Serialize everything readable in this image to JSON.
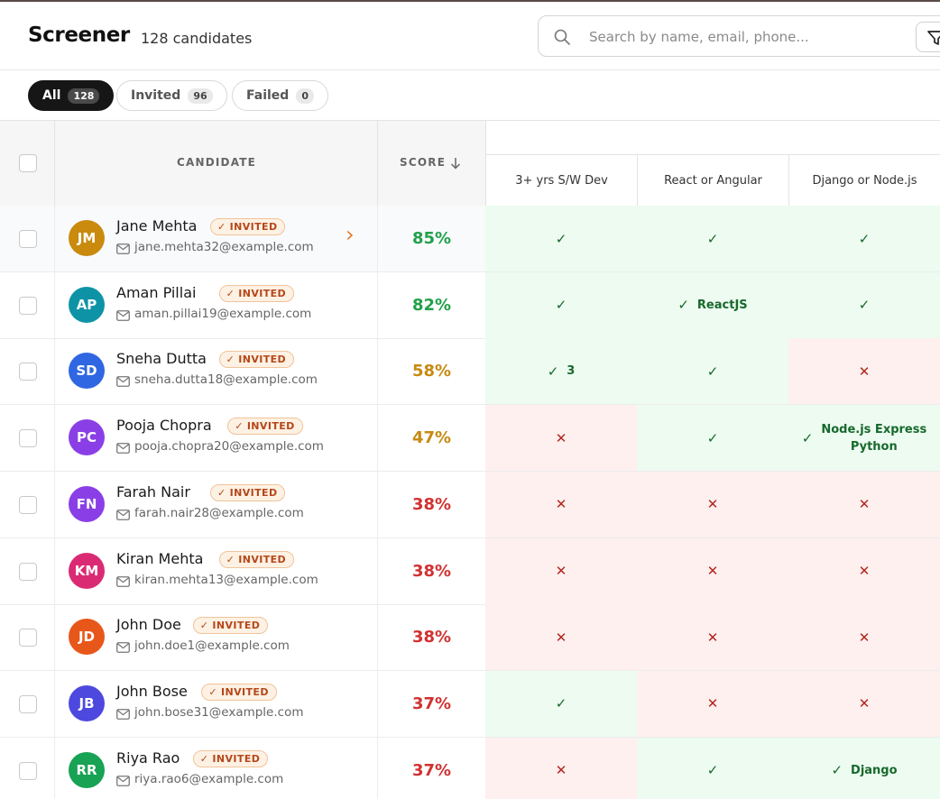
{
  "header": {
    "title": "Screener",
    "subtitle": "128 candidates",
    "search_placeholder": "Search by name, email, phone..."
  },
  "tabs": [
    {
      "label": "All",
      "count": "128",
      "active": true
    },
    {
      "label": "Invited",
      "count": "96",
      "active": false
    },
    {
      "label": "Failed",
      "count": "0",
      "active": false
    }
  ],
  "table": {
    "candidate_header": "CANDIDATE",
    "score_header": "SCORE",
    "criteria": [
      "3+ yrs S/W Dev",
      "React or Angular",
      "Django or Node.js"
    ],
    "rows": [
      {
        "initials": "JM",
        "avatar_color": "#c98a0e",
        "name": "Jane Mehta",
        "badge": "INVITED",
        "email": "jane.mehta32@example.com",
        "score": "85%",
        "score_level": "green",
        "results": [
          {
            "pass": true,
            "note": ""
          },
          {
            "pass": true,
            "note": ""
          },
          {
            "pass": true,
            "note": ""
          }
        ]
      },
      {
        "initials": "AP",
        "avatar_color": "#0e93a6",
        "name": "Aman Pillai",
        "badge": "INVITED",
        "email": "aman.pillai19@example.com",
        "score": "82%",
        "score_level": "green",
        "results": [
          {
            "pass": true,
            "note": ""
          },
          {
            "pass": true,
            "note": "ReactJS"
          },
          {
            "pass": true,
            "note": ""
          }
        ]
      },
      {
        "initials": "SD",
        "avatar_color": "#2f66e2",
        "name": "Sneha Dutta",
        "badge": "INVITED",
        "email": "sneha.dutta18@example.com",
        "score": "58%",
        "score_level": "amber",
        "results": [
          {
            "pass": true,
            "note": "3"
          },
          {
            "pass": true,
            "note": ""
          },
          {
            "pass": false,
            "note": ""
          }
        ]
      },
      {
        "initials": "PC",
        "avatar_color": "#8a3fe6",
        "name": "Pooja Chopra",
        "badge": "INVITED",
        "email": "pooja.chopra20@example.com",
        "score": "47%",
        "score_level": "amber",
        "results": [
          {
            "pass": false,
            "note": ""
          },
          {
            "pass": true,
            "note": ""
          },
          {
            "pass": true,
            "note": "Node.js Express\nPython"
          }
        ]
      },
      {
        "initials": "FN",
        "avatar_color": "#8a3fe6",
        "name": "Farah Nair",
        "badge": "INVITED",
        "email": "farah.nair28@example.com",
        "score": "38%",
        "score_level": "red",
        "results": [
          {
            "pass": false,
            "note": ""
          },
          {
            "pass": false,
            "note": ""
          },
          {
            "pass": false,
            "note": ""
          }
        ]
      },
      {
        "initials": "KM",
        "avatar_color": "#db2a74",
        "name": "Kiran Mehta",
        "badge": "INVITED",
        "email": "kiran.mehta13@example.com",
        "score": "38%",
        "score_level": "red",
        "results": [
          {
            "pass": false,
            "note": ""
          },
          {
            "pass": false,
            "note": ""
          },
          {
            "pass": false,
            "note": ""
          }
        ]
      },
      {
        "initials": "JD",
        "avatar_color": "#e8571a",
        "name": "John Doe",
        "badge": "INVITED",
        "email": "john.doe1@example.com",
        "score": "38%",
        "score_level": "red",
        "results": [
          {
            "pass": false,
            "note": ""
          },
          {
            "pass": false,
            "note": ""
          },
          {
            "pass": false,
            "note": ""
          }
        ]
      },
      {
        "initials": "JB",
        "avatar_color": "#4d49de",
        "name": "John Bose",
        "badge": "INVITED",
        "email": "john.bose31@example.com",
        "score": "37%",
        "score_level": "red",
        "results": [
          {
            "pass": true,
            "note": ""
          },
          {
            "pass": false,
            "note": ""
          },
          {
            "pass": false,
            "note": ""
          }
        ]
      },
      {
        "initials": "RR",
        "avatar_color": "#17a254",
        "name": "Riya Rao",
        "badge": "INVITED",
        "email": "riya.rao6@example.com",
        "score": "37%",
        "score_level": "red",
        "results": [
          {
            "pass": false,
            "note": ""
          },
          {
            "pass": true,
            "note": ""
          },
          {
            "pass": true,
            "note": "Django"
          }
        ]
      }
    ]
  }
}
